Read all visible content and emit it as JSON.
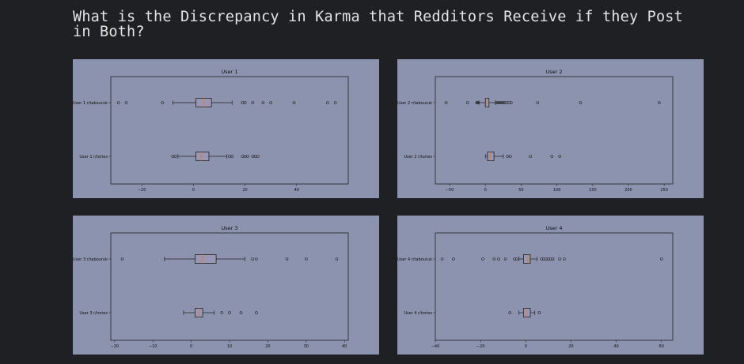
{
  "page": {
    "title": "What is the Discrepancy in Karma that Redditors Receive if they Post in Both?"
  },
  "colors": {
    "background": "#1f2023",
    "panel": "#8b93ae",
    "box_fill": "#9a97b4",
    "median": "#e07a2f",
    "text": "#e4e4e4"
  },
  "chart_data": [
    {
      "type": "boxplot",
      "title": "User 1",
      "xlim": [
        -32,
        60
      ],
      "xticks": [
        -20,
        0,
        20,
        40
      ],
      "categories": [
        "User 1 r/tabouruk",
        "User 1 r/tories"
      ],
      "boxes": [
        {
          "whislo": -8,
          "q1": 1,
          "med": 4,
          "q3": 7,
          "whishi": 15,
          "fliers": [
            -29,
            -26,
            -12,
            19,
            20,
            23,
            27,
            30,
            39,
            52,
            55
          ]
        },
        {
          "whislo": -6,
          "q1": 1,
          "med": 3,
          "q3": 6,
          "whishi": 13,
          "fliers": [
            -8,
            -7,
            14,
            15,
            19,
            20,
            21,
            23,
            24,
            25
          ]
        }
      ]
    },
    {
      "type": "boxplot",
      "title": "User 2",
      "xlim": [
        -70,
        262
      ],
      "xticks": [
        -50,
        0,
        50,
        100,
        150,
        200,
        250
      ],
      "categories": [
        "User 2 r/tabouruk",
        "User 2 r/tories"
      ],
      "boxes": [
        {
          "whislo": -9,
          "q1": 0,
          "med": 2,
          "q3": 5,
          "whishi": 14,
          "fliers": [
            -55,
            -25,
            -12,
            -11,
            -10,
            15,
            17,
            19,
            21,
            23,
            25,
            27,
            30,
            33,
            36,
            73,
            133,
            243
          ]
        },
        {
          "whislo": 0,
          "q1": 3,
          "med": 7,
          "q3": 12,
          "whishi": 25,
          "fliers": [
            31,
            35,
            63,
            93,
            104
          ]
        }
      ]
    },
    {
      "type": "boxplot",
      "title": "User 3",
      "xlim": [
        -21,
        41
      ],
      "xticks": [
        -20,
        -10,
        0,
        10,
        20,
        30,
        40
      ],
      "categories": [
        "User 3 r/tabouruk",
        "User 3 r/tories"
      ],
      "boxes": [
        {
          "whislo": -7,
          "q1": 1,
          "med": 3,
          "q3": 6.5,
          "whishi": 14,
          "fliers": [
            -18,
            16,
            17,
            25,
            30,
            38
          ]
        },
        {
          "whislo": -2,
          "q1": 1,
          "med": 2,
          "q3": 3,
          "whishi": 6,
          "fliers": [
            8,
            10,
            13,
            17
          ]
        }
      ]
    },
    {
      "type": "boxplot",
      "title": "User 4",
      "xlim": [
        -40,
        65
      ],
      "xticks": [
        -40,
        -20,
        0,
        20,
        40,
        60
      ],
      "categories": [
        "User 4 r/tabouruk",
        "User 4 r/tories"
      ],
      "boxes": [
        {
          "whislo": -3,
          "q1": -1,
          "med": 1,
          "q3": 2,
          "whishi": 5,
          "fliers": [
            -37,
            -32,
            -19,
            -14,
            -12,
            -9,
            -5,
            -4,
            7,
            8,
            9,
            10,
            11,
            12,
            15,
            17,
            60
          ]
        },
        {
          "whislo": -3,
          "q1": -1,
          "med": 0,
          "q3": 2,
          "whishi": 4,
          "fliers": [
            -7,
            6
          ]
        }
      ]
    }
  ]
}
